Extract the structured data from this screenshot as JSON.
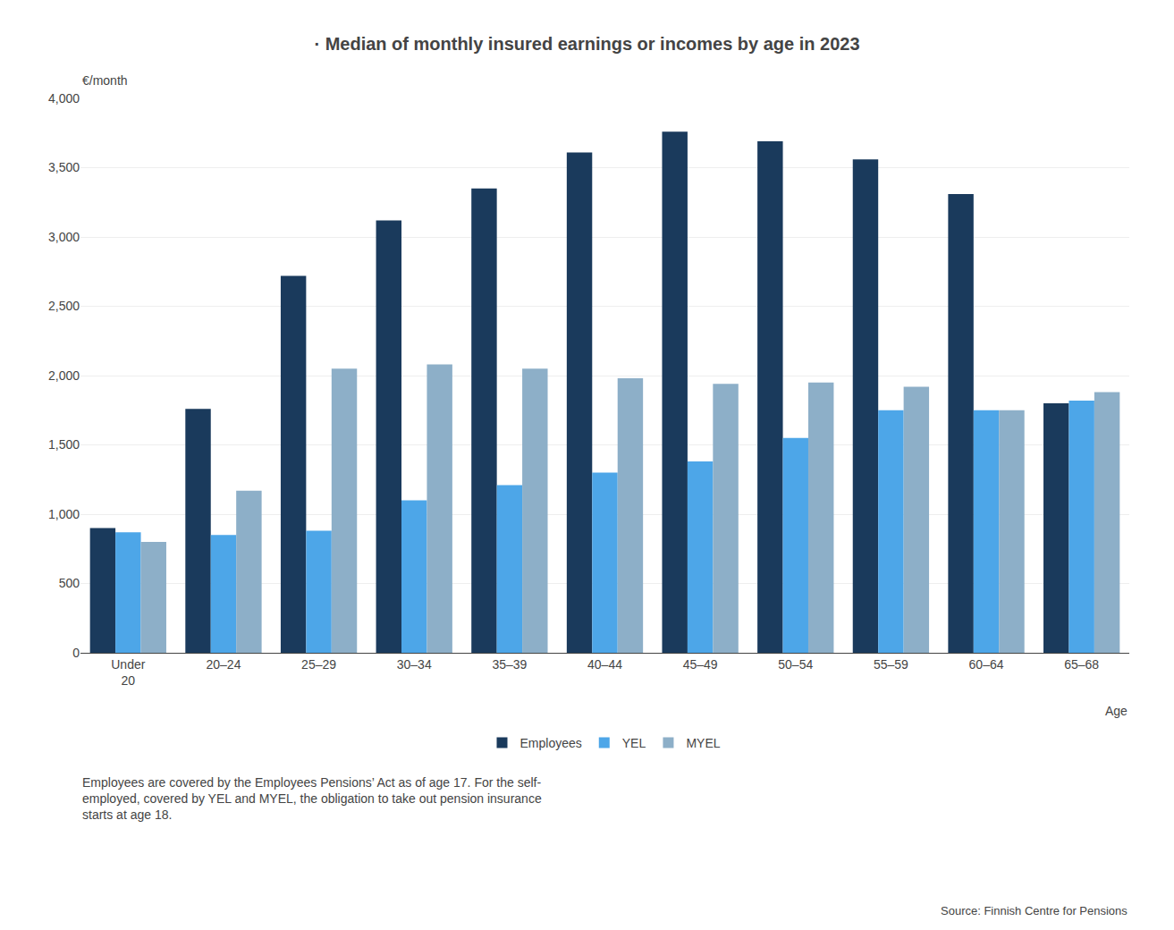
{
  "chart_data": {
    "type": "bar",
    "title": "· Median of monthly insured earnings or incomes by age in 2023",
    "ylabel": "€/month",
    "xlabel": "Age",
    "categories": [
      "Under\n20",
      "20–24",
      "25–29",
      "30–34",
      "35–39",
      "40–44",
      "45–49",
      "50–54",
      "55–59",
      "60–64",
      "65–68"
    ],
    "series": [
      {
        "name": "Employees",
        "color": "#1a3a5c",
        "values": [
          900,
          1760,
          2720,
          3120,
          3350,
          3610,
          3760,
          3690,
          3560,
          3310,
          1800
        ]
      },
      {
        "name": "YEL",
        "color": "#4da6e8",
        "values": [
          870,
          850,
          880,
          1100,
          1210,
          1300,
          1380,
          1550,
          1750,
          1750,
          1820
        ]
      },
      {
        "name": "MYEL",
        "color": "#8dafc8",
        "values": [
          800,
          1170,
          2050,
          2080,
          2050,
          1980,
          1940,
          1950,
          1920,
          1750,
          1880
        ]
      }
    ],
    "ylim": [
      0,
      4000
    ],
    "yticks": [
      0,
      500,
      {
        "value": 1000,
        "label": "1,000"
      },
      {
        "value": 1500,
        "label": "1,500"
      },
      {
        "value": 2000,
        "label": "2,000"
      },
      {
        "value": 2500,
        "label": "2,500"
      },
      {
        "value": 3000,
        "label": "3,000"
      },
      {
        "value": 3500,
        "label": "3,500"
      },
      {
        "value": 4000,
        "label": "4,000"
      }
    ],
    "grid": true,
    "legend": "bottom",
    "annotations": [
      "Employees are covered by the Employees Pensions’ Act as of age 17. For the self-",
      "employed, covered by YEL and MYEL, the obligation to take out pension insurance",
      "starts at age 18.",
      "Source: Finnish Centre for Pensions"
    ]
  }
}
